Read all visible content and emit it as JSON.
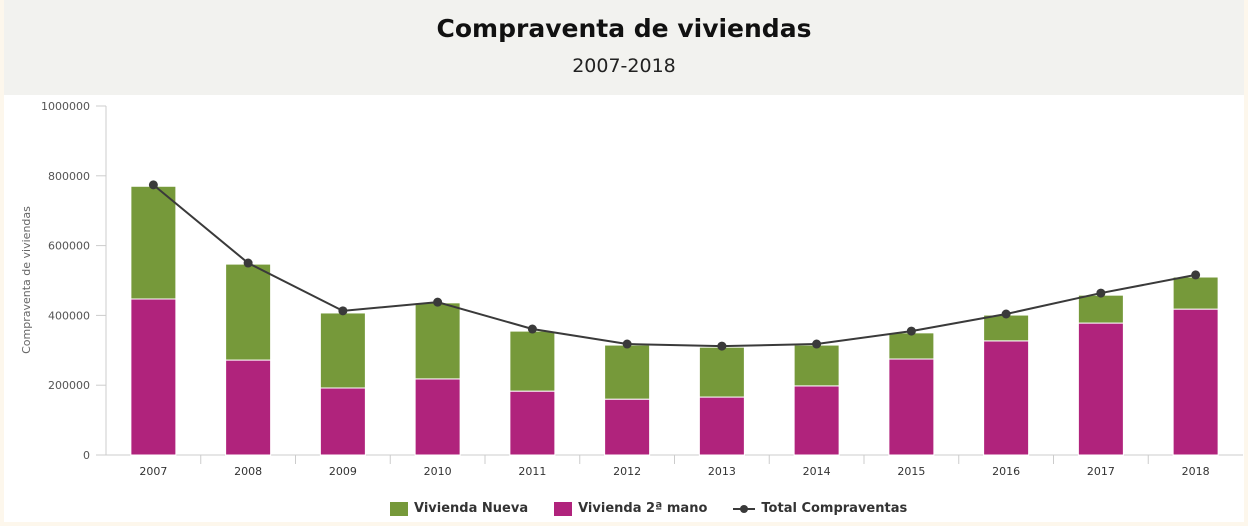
{
  "header": {
    "title": "Compraventa de viviendas",
    "subtitle": "2007-2018"
  },
  "chart_data": {
    "type": "bar",
    "stacked": true,
    "title": "Compraventa de viviendas",
    "subtitle": "2007-2018",
    "xlabel": "",
    "ylabel": "Compraventa de viviendas",
    "ylim": [
      0,
      1000000
    ],
    "yticks": [
      "0",
      "200000",
      "400000",
      "600000",
      "800000",
      "1000000"
    ],
    "categories": [
      "2007",
      "2008",
      "2009",
      "2010",
      "2011",
      "2012",
      "2013",
      "2014",
      "2015",
      "2016",
      "2017",
      "2018"
    ],
    "series": [
      {
        "name": "Vivienda 2ª mano",
        "type": "bar",
        "color": "#b0237c",
        "values": [
          447000,
          272000,
          192000,
          218000,
          183000,
          160000,
          166000,
          198000,
          275000,
          327000,
          378000,
          418000
        ]
      },
      {
        "name": "Vivienda Nueva",
        "type": "bar",
        "color": "#76993a",
        "values": [
          323000,
          275000,
          215000,
          218000,
          172000,
          155000,
          143000,
          117000,
          75000,
          74000,
          80000,
          92000
        ]
      },
      {
        "name": "Total Compraventas",
        "type": "line",
        "color": "#3a3a3a",
        "values": [
          774000,
          550000,
          413000,
          438000,
          361000,
          318000,
          312000,
          318000,
          355000,
          404000,
          464000,
          516000
        ]
      }
    ],
    "grid": false,
    "legend": "bottom"
  }
}
